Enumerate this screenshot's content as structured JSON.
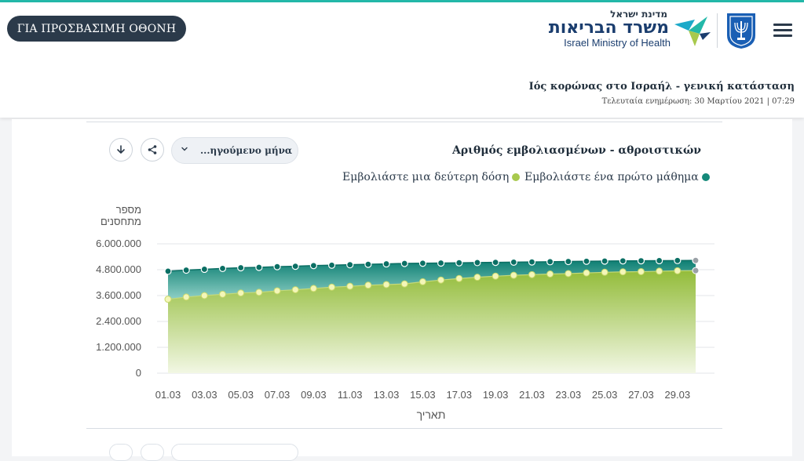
{
  "header": {
    "accessibility_label": "ΓΙΑ ΠΡΟΣΒΑΣΙΜΗ ΟΘΟΝΗ",
    "logo_small": "מדינת ישראל",
    "logo_main": "משרד הבריאות",
    "logo_en": "Israel Ministry of Health",
    "page_title": "Ιός κορώνας στο Ισραήλ - γενική κατάσταση",
    "last_updated": "Τελευταία ενημέρωση: 30 Μαρτίου 2021 | 07:29"
  },
  "card": {
    "title": "Αριθμός εμβολιασμένων - αθροιστικών",
    "dropdown_label": "...ηγούμενο μήνα",
    "download_icon": "download-icon",
    "share_icon": "share-icon"
  },
  "colors": {
    "first_dose": "#15897a",
    "second_dose": "#a8c94d",
    "header_dark": "#2b3a4a",
    "accent": "#23b8a9"
  },
  "chart_data": {
    "type": "area",
    "title": "Αριθμός εμβολιασμένων - αθροιστικών",
    "ylabel": "מספר מתחסנים",
    "xlabel": "תאריך",
    "ylim": [
      0,
      6000000
    ],
    "y_ticks": [
      "0",
      "1.200.000",
      "2.400.000",
      "3.600.000",
      "4.800.000",
      "6.000.000"
    ],
    "x_tick_labels": [
      "01.03",
      "03.03",
      "05.03",
      "07.03",
      "09.03",
      "11.03",
      "13.03",
      "15.03",
      "17.03",
      "19.03",
      "21.03",
      "23.03",
      "25.03",
      "27.03",
      "29.03"
    ],
    "x": [
      "01.03",
      "02.03",
      "03.03",
      "04.03",
      "05.03",
      "06.03",
      "07.03",
      "08.03",
      "09.03",
      "10.03",
      "11.03",
      "12.03",
      "13.03",
      "14.03",
      "15.03",
      "16.03",
      "17.03",
      "18.03",
      "19.03",
      "20.03",
      "21.03",
      "22.03",
      "23.03",
      "24.03",
      "25.03",
      "26.03",
      "27.03",
      "28.03",
      "29.03",
      "30.03"
    ],
    "grid": true,
    "legend_position": "top-right",
    "series": [
      {
        "name": "Εμβολιάστε ένα πρώτο μάθημα",
        "values": [
          4730000,
          4780000,
          4820000,
          4860000,
          4890000,
          4910000,
          4940000,
          4960000,
          4990000,
          5010000,
          5030000,
          5050000,
          5070000,
          5090000,
          5100000,
          5110000,
          5120000,
          5130000,
          5140000,
          5150000,
          5160000,
          5170000,
          5180000,
          5190000,
          5200000,
          5210000,
          5215000,
          5220000,
          5225000,
          5230000
        ]
      },
      {
        "name": "Εμβολιάστε μια δεύτερη δόση",
        "values": [
          3430000,
          3530000,
          3600000,
          3660000,
          3720000,
          3750000,
          3820000,
          3870000,
          3930000,
          3990000,
          4030000,
          4080000,
          4110000,
          4140000,
          4240000,
          4320000,
          4390000,
          4450000,
          4500000,
          4540000,
          4570000,
          4600000,
          4620000,
          4650000,
          4680000,
          4700000,
          4710000,
          4730000,
          4750000,
          4760000
        ]
      }
    ]
  }
}
